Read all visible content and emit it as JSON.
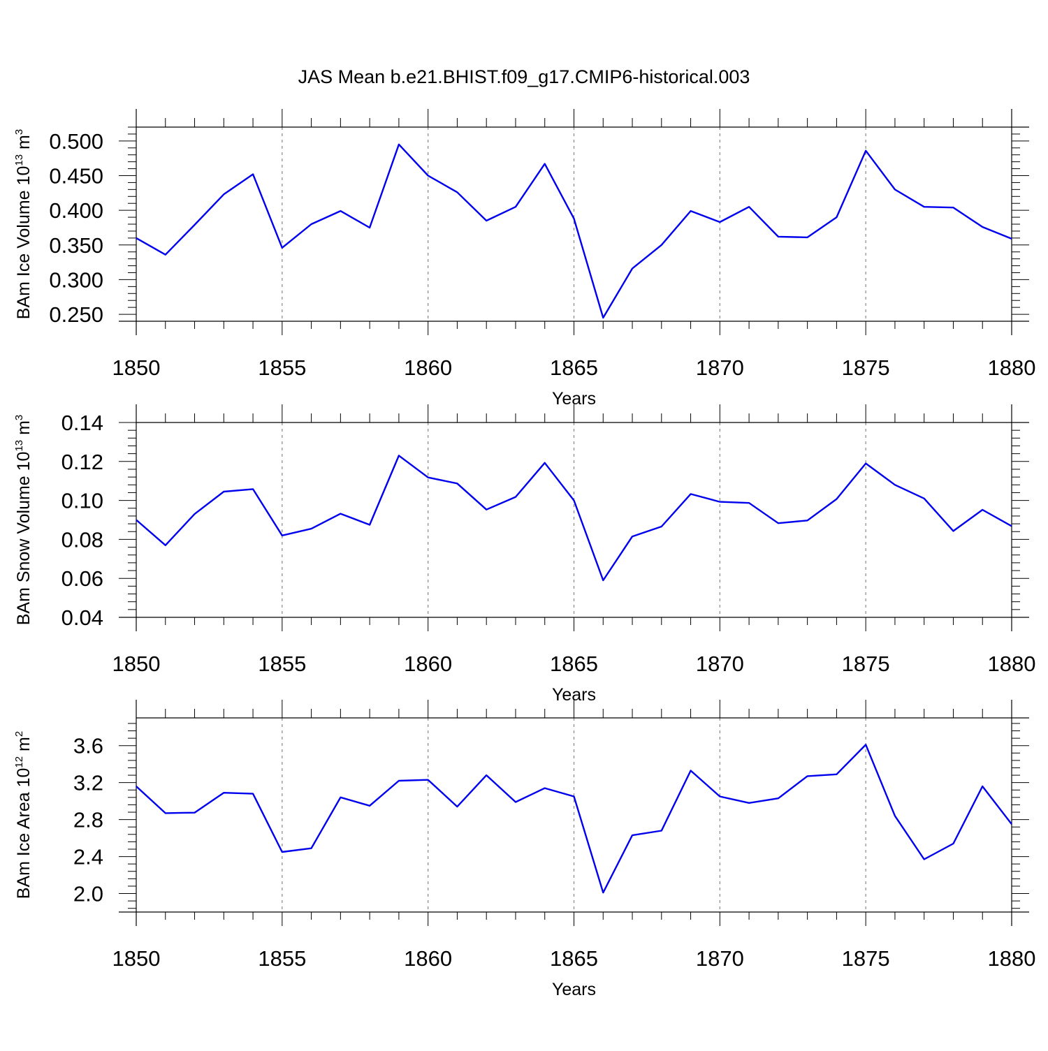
{
  "title": "JAS Mean b.e21.BHIST.f09_g17.CMIP6-historical.003",
  "colors": {
    "line": "#0000ee",
    "axis": "#000000",
    "grid": "#888888"
  },
  "chart_data": [
    {
      "type": "line",
      "ylabel": "BAm Ice Volume 10",
      "ylabel_exp": "13",
      "ylabel_unit": " m",
      "ylabel_unit_exp": "3",
      "xlabel": "Years",
      "xlim": [
        1850,
        1880
      ],
      "ylim": [
        0.24,
        0.52
      ],
      "yticks": [
        0.25,
        0.3,
        0.35,
        0.4,
        0.45,
        0.5
      ],
      "ytick_labels": [
        "0.250",
        "0.300",
        "0.350",
        "0.400",
        "0.450",
        "0.500"
      ],
      "xticks": [
        1850,
        1855,
        1860,
        1865,
        1870,
        1875,
        1880
      ],
      "xtick_labels": [
        "1850",
        "1855",
        "1860",
        "1865",
        "1870",
        "1875",
        "1880"
      ],
      "grid_x": [
        1855,
        1860,
        1865,
        1870,
        1875
      ],
      "x": [
        1850,
        1851,
        1852,
        1853,
        1854,
        1855,
        1856,
        1857,
        1858,
        1859,
        1860,
        1861,
        1862,
        1863,
        1864,
        1865,
        1866,
        1867,
        1868,
        1869,
        1870,
        1871,
        1872,
        1873,
        1874,
        1875,
        1876,
        1877,
        1878,
        1879,
        1880
      ],
      "values": [
        0.36,
        0.336,
        0.379,
        0.423,
        0.452,
        0.346,
        0.38,
        0.399,
        0.375,
        0.495,
        0.45,
        0.426,
        0.385,
        0.405,
        0.467,
        0.388,
        0.245,
        0.316,
        0.35,
        0.399,
        0.383,
        0.405,
        0.362,
        0.361,
        0.39,
        0.486,
        0.43,
        0.405,
        0.404,
        0.376,
        0.359
      ]
    },
    {
      "type": "line",
      "ylabel": "BAm Snow Volume 10",
      "ylabel_exp": "13",
      "ylabel_unit": " m",
      "ylabel_unit_exp": "3",
      "xlabel": "Years",
      "xlim": [
        1850,
        1880
      ],
      "ylim": [
        0.04,
        0.14
      ],
      "yticks": [
        0.04,
        0.06,
        0.08,
        0.1,
        0.12,
        0.14
      ],
      "ytick_labels": [
        "0.04",
        "0.06",
        "0.08",
        "0.10",
        "0.12",
        "0.14"
      ],
      "xticks": [
        1850,
        1855,
        1860,
        1865,
        1870,
        1875,
        1880
      ],
      "xtick_labels": [
        "1850",
        "1855",
        "1860",
        "1865",
        "1870",
        "1875",
        "1880"
      ],
      "grid_x": [
        1855,
        1860,
        1865,
        1870,
        1875
      ],
      "x": [
        1850,
        1851,
        1852,
        1853,
        1854,
        1855,
        1856,
        1857,
        1858,
        1859,
        1860,
        1861,
        1862,
        1863,
        1864,
        1865,
        1866,
        1867,
        1868,
        1869,
        1870,
        1871,
        1872,
        1873,
        1874,
        1875,
        1876,
        1877,
        1878,
        1879,
        1880
      ],
      "values": [
        0.09,
        0.077,
        0.093,
        0.1045,
        0.1058,
        0.082,
        0.0855,
        0.0932,
        0.0875,
        0.123,
        0.1118,
        0.1087,
        0.0953,
        0.1018,
        0.1193,
        0.1,
        0.059,
        0.0815,
        0.0866,
        0.1033,
        0.0993,
        0.0987,
        0.0883,
        0.0897,
        0.1007,
        0.119,
        0.108,
        0.101,
        0.0843,
        0.0952,
        0.0868
      ]
    },
    {
      "type": "line",
      "ylabel": "BAm Ice Area 10",
      "ylabel_exp": "12",
      "ylabel_unit": " m",
      "ylabel_unit_exp": "2",
      "xlabel": "Years",
      "xlim": [
        1850,
        1880
      ],
      "ylim": [
        1.8,
        3.9
      ],
      "yticks": [
        2.0,
        2.4,
        2.8,
        3.2,
        3.6
      ],
      "ytick_labels": [
        "2.0",
        "2.4",
        "2.8",
        "3.2",
        "3.6"
      ],
      "xticks": [
        1850,
        1855,
        1860,
        1865,
        1870,
        1875,
        1880
      ],
      "xtick_labels": [
        "1850",
        "1855",
        "1860",
        "1865",
        "1870",
        "1875",
        "1880"
      ],
      "grid_x": [
        1855,
        1860,
        1865,
        1870,
        1875
      ],
      "x": [
        1850,
        1851,
        1852,
        1853,
        1854,
        1855,
        1856,
        1857,
        1858,
        1859,
        1860,
        1861,
        1862,
        1863,
        1864,
        1865,
        1866,
        1867,
        1868,
        1869,
        1870,
        1871,
        1872,
        1873,
        1874,
        1875,
        1876,
        1877,
        1878,
        1879,
        1880
      ],
      "values": [
        3.16,
        2.87,
        2.875,
        3.09,
        3.08,
        2.45,
        2.49,
        3.04,
        2.95,
        3.22,
        3.23,
        2.94,
        3.28,
        2.99,
        3.14,
        3.05,
        2.01,
        2.63,
        2.68,
        3.33,
        3.05,
        2.98,
        3.03,
        3.27,
        3.29,
        3.61,
        2.84,
        2.37,
        2.54,
        3.16,
        2.75
      ]
    }
  ]
}
